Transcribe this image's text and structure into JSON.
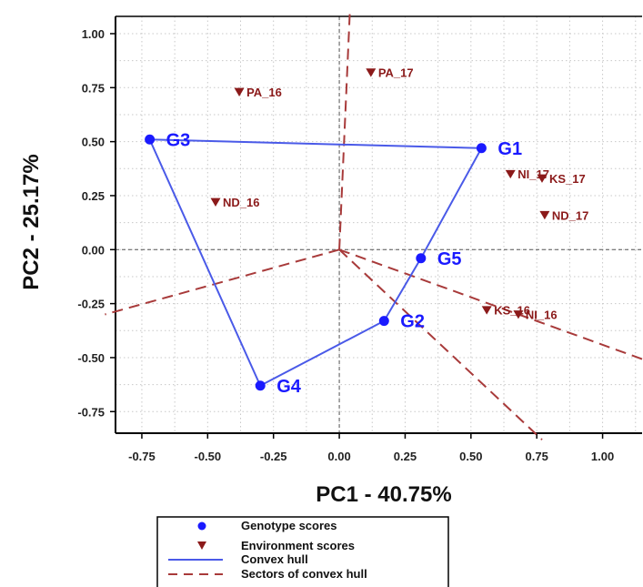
{
  "chart_data": {
    "type": "scatter",
    "title": "",
    "xlabel": "PC1 - 40.75%",
    "ylabel": "PC2 - 25.17%",
    "xlim": [
      -0.85,
      1.15
    ],
    "ylim": [
      -0.85,
      1.08
    ],
    "xticks": [
      -0.75,
      -0.5,
      -0.25,
      0.0,
      0.25,
      0.5,
      0.75,
      1.0
    ],
    "xtick_labels": [
      "-0.75",
      "-0.50",
      "-0.25",
      "0.00",
      "0.25",
      "0.50",
      "0.75",
      "1.00"
    ],
    "yticks": [
      -0.75,
      -0.5,
      -0.25,
      0.0,
      0.25,
      0.5,
      0.75,
      1.0
    ],
    "ytick_labels": [
      "-0.75",
      "-0.50",
      "-0.25",
      "0.00",
      "0.25",
      "0.50",
      "0.75",
      "1.00"
    ],
    "grid": true,
    "legend_placement": "bottom",
    "series": [
      {
        "name": "Genotype scores",
        "color": "#1a1aff",
        "marker": "circle",
        "points": [
          {
            "label": "G1",
            "x": 0.54,
            "y": 0.47
          },
          {
            "label": "G2",
            "x": 0.17,
            "y": -0.33
          },
          {
            "label": "G3",
            "x": -0.72,
            "y": 0.51
          },
          {
            "label": "G4",
            "x": -0.3,
            "y": -0.63
          },
          {
            "label": "G5",
            "x": 0.31,
            "y": -0.04
          }
        ]
      },
      {
        "name": "Environment scores",
        "color": "#8b1a1a",
        "marker": "triangle-down",
        "points": [
          {
            "label": "PA_16",
            "x": -0.38,
            "y": 0.73
          },
          {
            "label": "PA_17",
            "x": 0.12,
            "y": 0.82
          },
          {
            "label": "ND_16",
            "x": -0.47,
            "y": 0.22
          },
          {
            "label": "ND_17",
            "x": 0.78,
            "y": 0.16
          },
          {
            "label": "NI_17",
            "x": 0.65,
            "y": 0.35
          },
          {
            "label": "KS_17",
            "x": 0.77,
            "y": 0.33
          },
          {
            "label": "KS_16",
            "x": 0.56,
            "y": -0.28
          },
          {
            "label": "NI_16",
            "x": 0.68,
            "y": -0.3
          }
        ]
      },
      {
        "name": "Convex hull",
        "color": "#4a5ae8",
        "style": "solid",
        "vertex_order": [
          "G3",
          "G1",
          "G5",
          "G2",
          "G4"
        ]
      },
      {
        "name": "Sectors of convex hull",
        "color": "#a83a3a",
        "style": "dashed",
        "rays": [
          {
            "x": 0.04,
            "y": 1.1
          },
          {
            "x": -0.89,
            "y": -0.3
          },
          {
            "x": 1.18,
            "y": -0.52
          },
          {
            "x": 0.77,
            "y": -0.88
          }
        ]
      }
    ]
  }
}
